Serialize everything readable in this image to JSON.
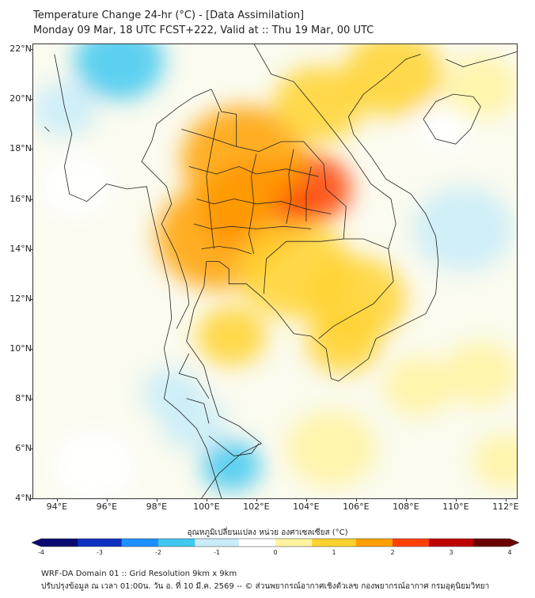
{
  "header": {
    "title_line1": "Temperature Change 24-hr (°C) - [Data Assimilation]",
    "title_line2": "Monday 09 Mar, 18 UTC FCST+222, Valid at :: Thu 19 Mar, 00 UTC"
  },
  "map": {
    "lat_labels": [
      "22°N",
      "20°N",
      "18°N",
      "16°N",
      "14°N",
      "12°N",
      "10°N",
      "8°N",
      "6°N",
      "4°N"
    ],
    "lon_labels": [
      "94°E",
      "96°E",
      "98°E",
      "100°E",
      "102°E",
      "104°E",
      "106°E",
      "108°E",
      "110°E",
      "112°E"
    ],
    "lat_values": [
      22,
      20,
      18,
      16,
      14,
      12,
      10,
      8,
      6,
      4
    ],
    "lon_values": [
      94,
      96,
      98,
      100,
      102,
      104,
      106,
      108,
      110,
      112
    ],
    "extent": {
      "lon_min": 93.05,
      "lon_max": 112.45,
      "lat_min": 4.0,
      "lat_max": 22.2
    },
    "field_blobs": [
      {
        "lon": 102.0,
        "lat": 15.6,
        "value": 2.2,
        "spread": 2.2
      },
      {
        "lon": 104.2,
        "lat": 16.4,
        "value": 2.0,
        "spread": 1.6
      },
      {
        "lon": 101.5,
        "lat": 17.6,
        "value": 1.6,
        "spread": 2.5
      },
      {
        "lon": 100.5,
        "lat": 14.5,
        "value": 1.4,
        "spread": 2.5
      },
      {
        "lon": 103.5,
        "lat": 13.2,
        "value": 1.2,
        "spread": 2.3
      },
      {
        "lon": 106.0,
        "lat": 12.0,
        "value": 0.9,
        "spread": 2.0
      },
      {
        "lon": 107.5,
        "lat": 21.0,
        "value": 1.0,
        "spread": 2.0
      },
      {
        "lon": 105.5,
        "lat": 10.3,
        "value": 0.8,
        "spread": 1.5
      },
      {
        "lon": 101.0,
        "lat": 10.5,
        "value": 0.7,
        "spread": 1.4
      },
      {
        "lon": 96.5,
        "lat": 21.5,
        "value": -1.4,
        "spread": 1.8
      },
      {
        "lon": 94.3,
        "lat": 19.6,
        "value": -1.0,
        "spread": 1.3
      },
      {
        "lon": 101.0,
        "lat": 5.3,
        "value": -1.5,
        "spread": 1.2
      },
      {
        "lon": 98.6,
        "lat": 8.2,
        "value": -1.0,
        "spread": 1.2
      },
      {
        "lon": 99.5,
        "lat": 7.0,
        "value": -0.9,
        "spread": 1.3
      },
      {
        "lon": 110.3,
        "lat": 14.8,
        "value": -0.7,
        "spread": 2.0
      },
      {
        "lon": 94.8,
        "lat": 16.5,
        "value": -0.5,
        "spread": 1.6
      },
      {
        "lon": 95.5,
        "lat": 5.3,
        "value": -0.5,
        "spread": 1.8
      },
      {
        "lon": 109.5,
        "lat": 18.8,
        "value": -0.6,
        "spread": 1.2
      },
      {
        "lon": 111.0,
        "lat": 9.0,
        "value": 0.6,
        "spread": 1.5
      },
      {
        "lon": 105.0,
        "lat": 6.0,
        "value": 0.5,
        "spread": 1.8
      },
      {
        "lon": 108.5,
        "lat": 8.5,
        "value": 0.5,
        "spread": 1.4
      },
      {
        "lon": 112.0,
        "lat": 5.5,
        "value": 0.5,
        "spread": 1.3
      },
      {
        "lon": 104.5,
        "lat": 19.8,
        "value": 1.0,
        "spread": 1.8
      },
      {
        "lon": 111.0,
        "lat": 20.5,
        "value": 0.6,
        "spread": 1.5
      }
    ]
  },
  "colorbar": {
    "title": "อุณหภูมิเปลี่ยนแปลง หน่วย องศาเซลเซียส (°C)",
    "labels": [
      "-4",
      "-3",
      "-2",
      "-1",
      "0",
      "1",
      "2",
      "3",
      "4"
    ],
    "min": -4,
    "max": 4,
    "colors": [
      "#0a0a70",
      "#1030c0",
      "#1e90ff",
      "#40c8f0",
      "#c8ecf8",
      "#ffffff",
      "#fff3a0",
      "#ffd230",
      "#ffa000",
      "#ff4000",
      "#c00000",
      "#6a0000"
    ]
  },
  "footer": {
    "line1": "WRF-DA Domain 01 :: Grid Resolution 9km x 9km",
    "line2": "ปรับปรุงข้อมูล ณ เวลา 01:00น. วัน อ. ที่ 10 มี.ค. 2569 -- © ส่วนพยากรณ์อากาศเชิงตัวเลข กองพยากรณ์อากาศ กรมอุตุนิยมวิทยา"
  }
}
